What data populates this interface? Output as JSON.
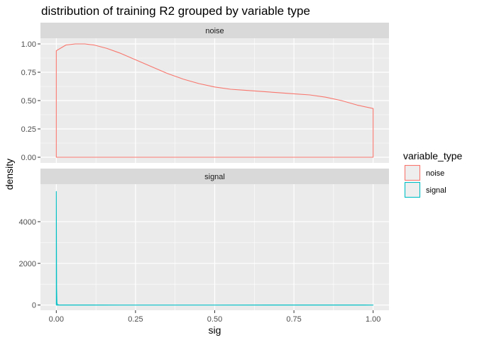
{
  "chart_data": {
    "type": "area",
    "title": "distribution of training R2 grouped by variable type",
    "xlabel": "sig",
    "ylabel": "density",
    "xlim": [
      -0.05,
      1.05
    ],
    "x_ticks": [
      "0.00",
      "0.25",
      "0.50",
      "0.75",
      "1.00"
    ],
    "x_tick_values": [
      0,
      0.25,
      0.5,
      0.75,
      1.0
    ],
    "grid": true,
    "legend": {
      "title": "variable_type",
      "position": "right",
      "entries": [
        "noise",
        "signal"
      ]
    },
    "facets": [
      {
        "strip": "noise",
        "ylim": [
          -0.05,
          1.05
        ],
        "y_ticks": [
          "0.00",
          "0.25",
          "0.50",
          "0.75",
          "1.00"
        ],
        "y_tick_values": [
          0,
          0.25,
          0.5,
          0.75,
          1.0
        ]
      },
      {
        "strip": "signal",
        "ylim": [
          -250,
          5800
        ],
        "y_ticks": [
          "0",
          "2000",
          "4000"
        ],
        "y_tick_values": [
          0,
          2000,
          4000
        ]
      }
    ],
    "series": [
      {
        "name": "noise",
        "facet": 0,
        "color": "#F8766D",
        "x": [
          0,
          0.03,
          0.06,
          0.09,
          0.12,
          0.16,
          0.2,
          0.25,
          0.3,
          0.35,
          0.4,
          0.45,
          0.5,
          0.55,
          0.6,
          0.65,
          0.7,
          0.75,
          0.8,
          0.85,
          0.9,
          0.95,
          1.0
        ],
        "y": [
          0.94,
          0.99,
          1.0,
          1.0,
          0.99,
          0.96,
          0.92,
          0.86,
          0.8,
          0.74,
          0.69,
          0.65,
          0.62,
          0.6,
          0.59,
          0.58,
          0.57,
          0.56,
          0.55,
          0.53,
          0.5,
          0.46,
          0.43
        ]
      },
      {
        "name": "signal",
        "facet": 1,
        "color": "#00BFC4",
        "x": [
          0,
          0.0005,
          0.001,
          0.002,
          0.004,
          0.01,
          0.05,
          0.2,
          0.5,
          0.8,
          0.97,
          1.0
        ],
        "y": [
          5450,
          3000,
          800,
          100,
          15,
          5,
          2,
          1,
          1,
          2,
          5,
          0
        ]
      }
    ]
  }
}
